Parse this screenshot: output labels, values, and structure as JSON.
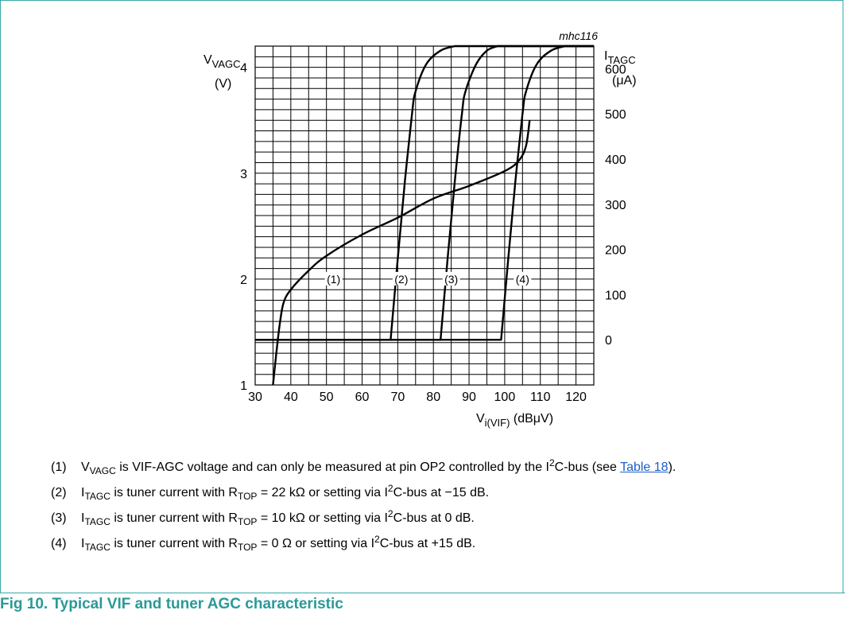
{
  "chart_data": {
    "type": "line",
    "figure_id": "mhc116",
    "x_axis": {
      "min": 30,
      "max": 125,
      "ticks": [
        30,
        40,
        50,
        60,
        70,
        80,
        90,
        100,
        110,
        120
      ],
      "label_main": "V",
      "label_sub": "i(VIF)",
      "label_unit": "(dBμV)"
    },
    "y_left_axis": {
      "min": 1,
      "max": 4.2,
      "ticks": [
        1,
        2,
        3,
        4
      ],
      "label_main": "V",
      "label_sub": "VAGC",
      "label_unit": "(V)"
    },
    "y_right_axis": {
      "min": -100,
      "max": 650,
      "ticks": [
        0,
        100,
        200,
        300,
        400,
        500,
        600
      ],
      "label_main": "I",
      "label_sub": "TAGC",
      "label_unit": "(μA)"
    },
    "grid": true,
    "series": [
      {
        "name": "(1)",
        "axis": "left",
        "x": [
          35,
          36,
          37,
          38,
          40,
          45,
          50,
          60,
          70,
          80,
          90,
          100,
          104,
          106,
          107
        ],
        "y": [
          1.0,
          1.32,
          1.6,
          1.78,
          1.9,
          2.08,
          2.22,
          2.42,
          2.58,
          2.76,
          2.88,
          3.02,
          3.12,
          3.26,
          3.5
        ]
      },
      {
        "name": "(2)",
        "axis": "right",
        "x": [
          30,
          68,
          70,
          72,
          74,
          75,
          78,
          82,
          86,
          125
        ],
        "y": [
          0,
          0,
          180,
          350,
          500,
          550,
          610,
          640,
          650,
          650
        ]
      },
      {
        "name": "(3)",
        "axis": "right",
        "x": [
          30,
          82,
          84,
          86,
          88,
          89,
          92,
          95,
          98,
          125
        ],
        "y": [
          0,
          0,
          180,
          350,
          500,
          550,
          610,
          640,
          650,
          650
        ]
      },
      {
        "name": "(4)",
        "axis": "right",
        "x": [
          30,
          99,
          101,
          103,
          105,
          106,
          109,
          113,
          117,
          125
        ],
        "y": [
          0,
          0,
          180,
          350,
          500,
          550,
          610,
          640,
          650,
          650
        ]
      }
    ],
    "annotations": [
      {
        "text": "(1)",
        "x": 52,
        "y": 2.0
      },
      {
        "text": "(2)",
        "x": 71,
        "y": 2.0
      },
      {
        "text": "(3)",
        "x": 85,
        "y": 2.0
      },
      {
        "text": "(4)",
        "x": 105,
        "y": 2.0
      }
    ]
  },
  "notes": [
    {
      "num": "(1)",
      "parts": [
        {
          "t": "V"
        },
        {
          "t": "VAGC",
          "s": "sub"
        },
        {
          "t": " is VIF-AGC voltage and can only be measured at pin OP2 controlled by the I"
        },
        {
          "t": "2",
          "s": "sup"
        },
        {
          "t": "C-bus (see "
        },
        {
          "t": "Table 18",
          "s": "link"
        },
        {
          "t": ")."
        }
      ]
    },
    {
      "num": "(2)",
      "parts": [
        {
          "t": "I"
        },
        {
          "t": "TAGC",
          "s": "sub"
        },
        {
          "t": " is tuner current with R"
        },
        {
          "t": "TOP",
          "s": "sub"
        },
        {
          "t": " = 22 kΩ or setting via I"
        },
        {
          "t": "2",
          "s": "sup"
        },
        {
          "t": "C-bus at −15 dB."
        }
      ]
    },
    {
      "num": "(3)",
      "parts": [
        {
          "t": "I"
        },
        {
          "t": "TAGC",
          "s": "sub"
        },
        {
          "t": " is tuner current with R"
        },
        {
          "t": "TOP",
          "s": "sub"
        },
        {
          "t": " = 10 kΩ or setting via I"
        },
        {
          "t": "2",
          "s": "sup"
        },
        {
          "t": "C-bus at 0 dB."
        }
      ]
    },
    {
      "num": "(4)",
      "parts": [
        {
          "t": "I"
        },
        {
          "t": "TAGC",
          "s": "sub"
        },
        {
          "t": " is tuner current with R"
        },
        {
          "t": "TOP",
          "s": "sub"
        },
        {
          "t": " = 0 Ω or setting via I"
        },
        {
          "t": "2",
          "s": "sup"
        },
        {
          "t": "C-bus at +15 dB."
        }
      ]
    }
  ],
  "caption": "Fig 10. Typical VIF and tuner AGC characteristic",
  "colors": {
    "frame": "#3aa9a7",
    "caption": "#2a9a98",
    "link": "#1a5fc8",
    "line": "#000000",
    "grid": "#000000"
  }
}
